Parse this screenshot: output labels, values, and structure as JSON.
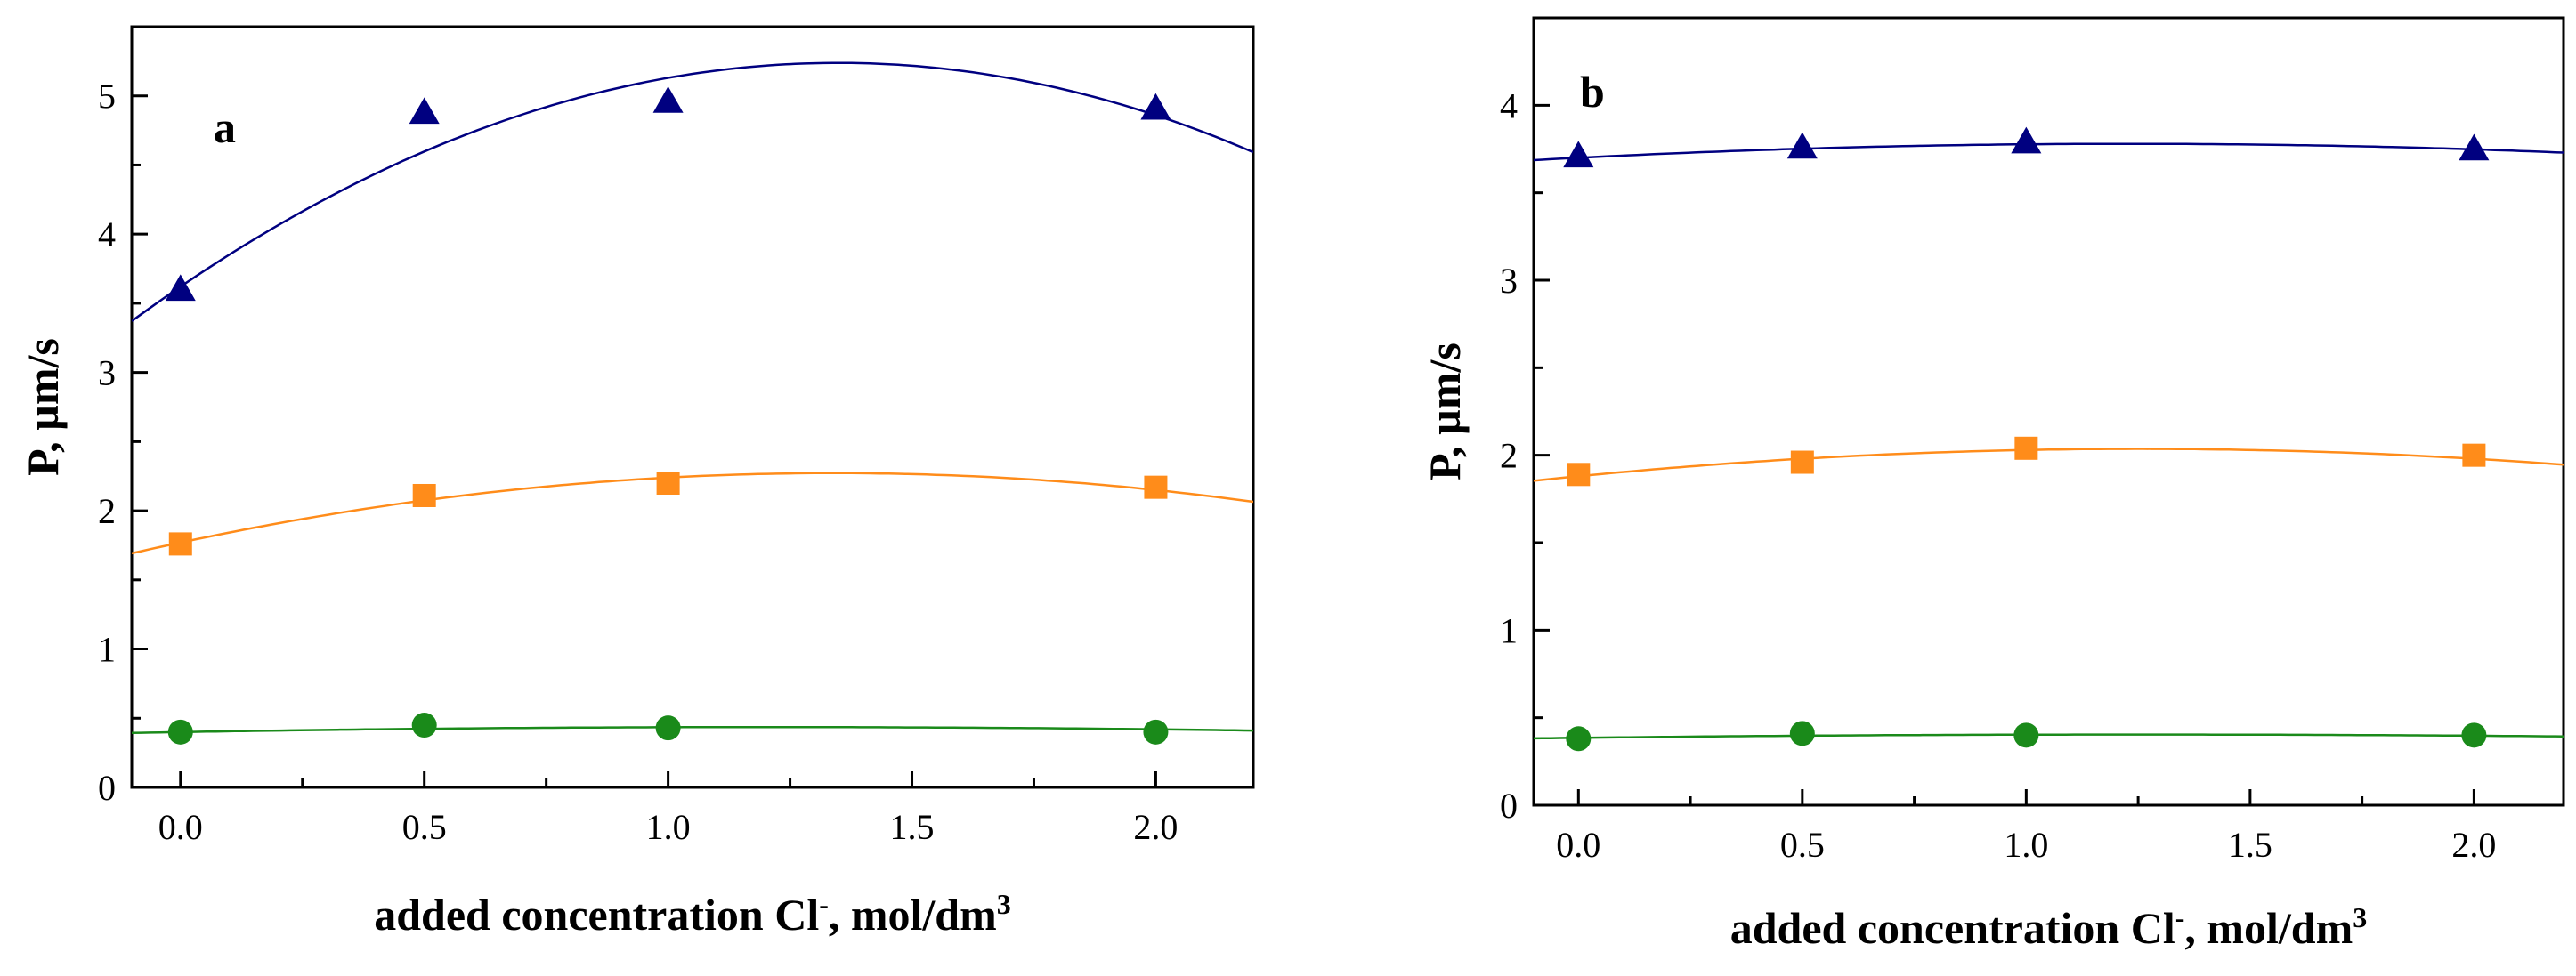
{
  "chart_data": [
    {
      "type": "scatter",
      "panel_label": "a",
      "xlabel": "added concentration Cl",
      "xlabel_sup_charge": "-",
      "xlabel_unit": ", mol/dm",
      "xlabel_unit_sup": "3",
      "ylabel": "P, µm/s",
      "xlim": [
        -0.1,
        2.2
      ],
      "ylim": [
        0,
        5.5
      ],
      "x_major_ticks": [
        0.0,
        0.5,
        1.0,
        1.5,
        2.0
      ],
      "x_tick_labels": [
        "0.0",
        "0.5",
        "1.0",
        "1.5",
        "2.0"
      ],
      "y_major_ticks": [
        0,
        1,
        2,
        3,
        4,
        5
      ],
      "y_tick_labels": [
        "0",
        "1",
        "2",
        "3",
        "4",
        "5"
      ],
      "series": [
        {
          "name": "triangles",
          "marker": "triangle",
          "color": "#000080",
          "x": [
            0.0,
            0.5,
            1.0,
            2.0
          ],
          "y": [
            3.6,
            4.88,
            4.96,
            4.91
          ],
          "fit": [
            3.62,
            2.4,
            -0.89
          ]
        },
        {
          "name": "squares",
          "marker": "square",
          "color": "#ff8c1a",
          "x": [
            0.0,
            0.5,
            1.0,
            2.0
          ],
          "y": [
            1.76,
            2.11,
            2.2,
            2.17
          ],
          "fit": [
            1.77,
            0.75,
            -0.28
          ]
        },
        {
          "name": "circles",
          "marker": "circle",
          "color": "#1a8a1a",
          "x": [
            0.0,
            0.5,
            1.0,
            2.0
          ],
          "y": [
            0.4,
            0.45,
            0.43,
            0.4
          ],
          "fit": [
            0.4,
            0.06,
            -0.025
          ]
        }
      ]
    },
    {
      "type": "scatter",
      "panel_label": "b",
      "xlabel": "added concentration Cl",
      "xlabel_sup_charge": "-",
      "xlabel_unit": ", mol/dm",
      "xlabel_unit_sup": "3",
      "ylabel": "P, µm/s",
      "xlim": [
        -0.1,
        2.2
      ],
      "ylim": [
        0,
        4.5
      ],
      "x_major_ticks": [
        0.0,
        0.5,
        1.0,
        1.5,
        2.0
      ],
      "x_tick_labels": [
        "0.0",
        "0.5",
        "1.0",
        "1.5",
        "2.0"
      ],
      "y_major_ticks": [
        0,
        1,
        2,
        3,
        4
      ],
      "y_tick_labels": [
        "0",
        "1",
        "2",
        "3",
        "4"
      ],
      "series": [
        {
          "name": "triangles",
          "marker": "triangle",
          "color": "#000080",
          "x": [
            0.0,
            0.5,
            1.0,
            2.0
          ],
          "y": [
            3.71,
            3.76,
            3.79,
            3.75
          ],
          "fit": [
            3.7,
            0.13,
            -0.053
          ]
        },
        {
          "name": "squares",
          "marker": "square",
          "color": "#ff8c1a",
          "x": [
            0.0,
            0.5,
            1.0,
            2.0
          ],
          "y": [
            1.89,
            1.96,
            2.04,
            2.0
          ],
          "fit": [
            1.88,
            0.25,
            -0.1
          ]
        },
        {
          "name": "circles",
          "marker": "circle",
          "color": "#1a8a1a",
          "x": [
            0.0,
            0.5,
            1.0,
            2.0
          ],
          "y": [
            0.38,
            0.41,
            0.4,
            0.4
          ],
          "fit": [
            0.385,
            0.03,
            -0.012
          ]
        }
      ]
    }
  ]
}
